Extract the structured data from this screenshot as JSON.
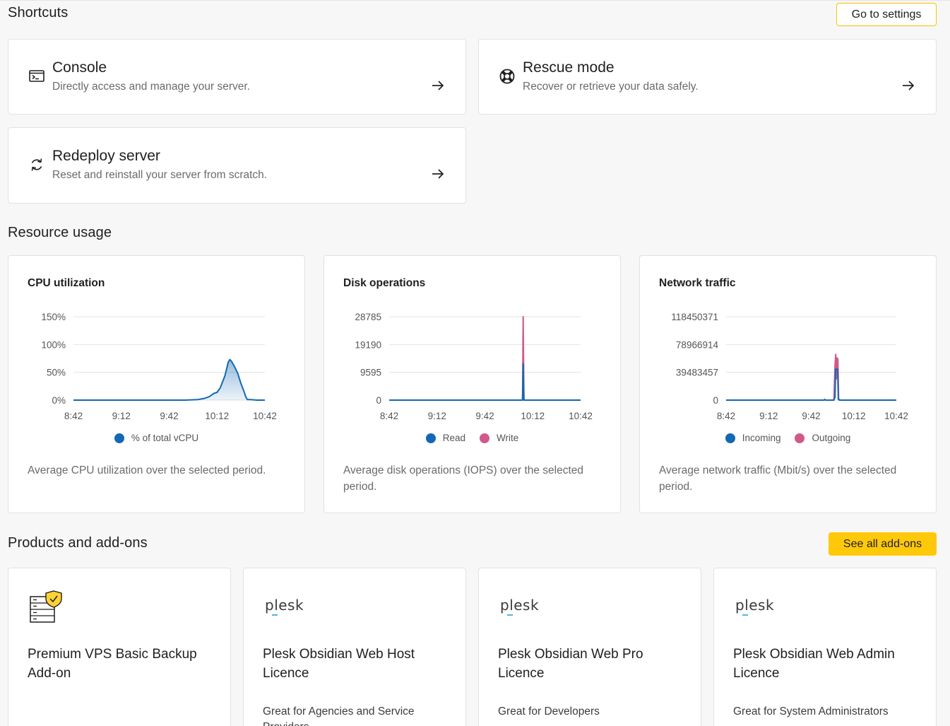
{
  "shortcuts": {
    "title": "Shortcuts",
    "settings_button": "Go to settings",
    "items": [
      {
        "title": "Console",
        "desc": "Directly access and manage your server.",
        "icon": "terminal-icon"
      },
      {
        "title": "Rescue mode",
        "desc": "Recover or retrieve your data safely.",
        "icon": "lifebuoy-icon"
      },
      {
        "title": "Redeploy server",
        "desc": "Reset and reinstall your server from scratch.",
        "icon": "refresh-icon"
      }
    ]
  },
  "resources": {
    "title": "Resource usage",
    "cards": [
      {
        "title": "CPU utilization",
        "desc": "Average CPU utilization over the selected period.",
        "legend": [
          {
            "label": "% of total vCPU",
            "color": "#1368b3"
          }
        ]
      },
      {
        "title": "Disk operations",
        "desc": "Average disk operations (IOPS) over the selected period.",
        "legend": [
          {
            "label": "Read",
            "color": "#1368b3"
          },
          {
            "label": "Write",
            "color": "#d0598b"
          }
        ]
      },
      {
        "title": "Network traffic",
        "desc": "Average network traffic (Mbit/s) over the selected period.",
        "legend": [
          {
            "label": "Incoming",
            "color": "#1368b3"
          },
          {
            "label": "Outgoing",
            "color": "#d0598b"
          }
        ]
      }
    ]
  },
  "chart_data": [
    {
      "type": "area",
      "title": "CPU utilization",
      "x_ticks": [
        "8:42",
        "9:12",
        "9:42",
        "10:12",
        "10:42"
      ],
      "y_ticks": [
        "0%",
        "50%",
        "100%",
        "150%"
      ],
      "ylim": [
        0,
        150
      ],
      "x_range_minutes": [
        0,
        120
      ],
      "series": [
        {
          "name": "% of total vCPU",
          "color": "#1368b3",
          "points": [
            [
              0,
              0
            ],
            [
              70,
              0
            ],
            [
              78,
              1
            ],
            [
              82,
              3
            ],
            [
              85,
              6
            ],
            [
              88,
              12
            ],
            [
              90,
              14
            ],
            [
              92,
              22
            ],
            [
              95,
              44
            ],
            [
              97,
              68
            ],
            [
              98,
              73
            ],
            [
              99,
              70
            ],
            [
              101,
              60
            ],
            [
              103,
              48
            ],
            [
              105,
              30
            ],
            [
              107,
              15
            ],
            [
              108,
              6
            ],
            [
              109,
              1
            ],
            [
              111,
              1
            ],
            [
              115,
              0
            ],
            [
              120,
              0
            ]
          ]
        }
      ]
    },
    {
      "type": "line",
      "title": "Disk operations",
      "x_ticks": [
        "8:42",
        "9:12",
        "9:42",
        "10:12",
        "10:42"
      ],
      "y_ticks": [
        "0",
        "9595",
        "19190",
        "28785"
      ],
      "ylim": [
        0,
        28785
      ],
      "x_range_minutes": [
        0,
        120
      ],
      "series": [
        {
          "name": "Write",
          "color": "#d0598b",
          "points": [
            [
              0,
              0
            ],
            [
              83.6,
              0
            ],
            [
              84,
              28785
            ],
            [
              84.5,
              0
            ],
            [
              120,
              0
            ]
          ]
        },
        {
          "name": "Read",
          "color": "#1368b3",
          "points": [
            [
              0,
              0
            ],
            [
              83.6,
              0
            ],
            [
              84,
              12500
            ],
            [
              84.5,
              0
            ],
            [
              120,
              0
            ]
          ]
        }
      ]
    },
    {
      "type": "line",
      "title": "Network traffic",
      "x_ticks": [
        "8:42",
        "9:12",
        "9:42",
        "10:12",
        "10:42"
      ],
      "y_ticks": [
        "0",
        "39483457",
        "78966914",
        "118450371"
      ],
      "ylim": [
        0,
        118450371
      ],
      "x_range_minutes": [
        0,
        120
      ],
      "series": [
        {
          "name": "Outgoing",
          "color": "#d0598b",
          "points": [
            [
              0,
              0
            ],
            [
              69,
              0
            ],
            [
              69.5,
              1200000
            ],
            [
              70,
              0
            ],
            [
              76,
              0
            ],
            [
              76.8,
              50000000
            ],
            [
              77.3,
              65000000
            ],
            [
              77.7,
              30000000
            ],
            [
              78.2,
              60000000
            ],
            [
              78.8,
              58000000
            ],
            [
              79.3,
              2000000
            ],
            [
              80,
              0
            ],
            [
              120,
              0
            ]
          ]
        },
        {
          "name": "Incoming",
          "color": "#1368b3",
          "points": [
            [
              0,
              0
            ],
            [
              69,
              0
            ],
            [
              69.5,
              800000
            ],
            [
              70,
              0
            ],
            [
              76,
              0
            ],
            [
              76.8,
              4000000
            ],
            [
              77.2,
              44000000
            ],
            [
              78.6,
              44000000
            ],
            [
              79.1,
              1000000
            ],
            [
              80,
              0
            ],
            [
              120,
              0
            ]
          ]
        }
      ]
    }
  ],
  "products": {
    "title": "Products and add-ons",
    "see_all_button": "See all add-ons",
    "items": [
      {
        "logo": "",
        "title": "Premium VPS Basic Backup Add-on",
        "desc": ""
      },
      {
        "logo": "plesk",
        "title": "Plesk Obsidian Web Host Licence",
        "desc": "Great for Agencies and Service Providers"
      },
      {
        "logo": "plesk",
        "title": "Plesk Obsidian Web Pro Licence",
        "desc": "Great for Developers"
      },
      {
        "logo": "plesk",
        "title": "Plesk Obsidian Web Admin Licence",
        "desc": "Great for System Administrators"
      }
    ]
  }
}
